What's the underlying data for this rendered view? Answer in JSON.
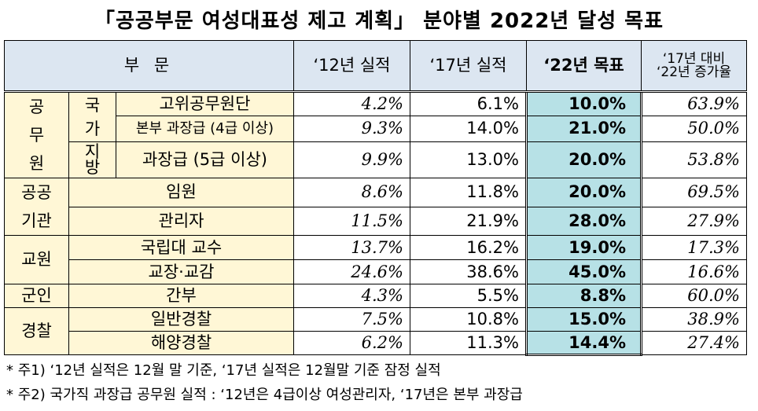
{
  "title": "「공공부문 여성대표성 제고 계획」 분야별 2022년 달성 목표",
  "headers": {
    "sector": "부 문",
    "y2012": "‘12년 실적",
    "y2017": "‘17년 실적",
    "y2022": "‘22년 목표",
    "rate_line1": "‘17년 대비",
    "rate_line2": "‘22년 증가율"
  },
  "groups": {
    "civil_servant": "공무원",
    "national": "국가",
    "local": "지방",
    "public_inst_line1": "공공",
    "public_inst_line2": "기관",
    "teacher": "교원",
    "military": "군인",
    "police": "경찰"
  },
  "rows": [
    {
      "label": "고위공무원단",
      "y2012": "4.2%",
      "y2017": "6.1%",
      "y2022": "10.0%",
      "rate": "63.9%"
    },
    {
      "label": "본부 과장급 (4급 이상)",
      "y2012": "9.3%",
      "y2017": "14.0%",
      "y2022": "21.0%",
      "rate": "50.0%"
    },
    {
      "label": "과장급 (5급 이상)",
      "y2012": "9.9%",
      "y2017": "13.0%",
      "y2022": "20.0%",
      "rate": "53.8%"
    },
    {
      "label": "임원",
      "y2012": "8.6%",
      "y2017": "11.8%",
      "y2022": "20.0%",
      "rate": "69.5%"
    },
    {
      "label": "관리자",
      "y2012": "11.5%",
      "y2017": "21.9%",
      "y2022": "28.0%",
      "rate": "27.9%"
    },
    {
      "label": "국립대 교수",
      "y2012": "13.7%",
      "y2017": "16.2%",
      "y2022": "19.0%",
      "rate": "17.3%"
    },
    {
      "label": "교장·교감",
      "y2012": "24.6%",
      "y2017": "38.6%",
      "y2022": "45.0%",
      "rate": "16.6%"
    },
    {
      "label": "간부",
      "y2012": "4.3%",
      "y2017": "5.5%",
      "y2022": "8.8%",
      "rate": "60.0%"
    },
    {
      "label": "일반경찰",
      "y2012": "7.5%",
      "y2017": "10.8%",
      "y2022": "15.0%",
      "rate": "38.9%"
    },
    {
      "label": "해양경찰",
      "y2012": "6.2%",
      "y2017": "11.3%",
      "y2022": "14.4%",
      "rate": "27.4%"
    }
  ],
  "notes": [
    "* 주1) ‘12년 실적은 12월 말 기준, ‘17년 실적은 12월말 기준 잠정 실적",
    "* 주2) 국가직 과장급 공무원 실적 : ‘12년은 4급이상 여성관리자, ‘17년은 본부 과장급"
  ]
}
